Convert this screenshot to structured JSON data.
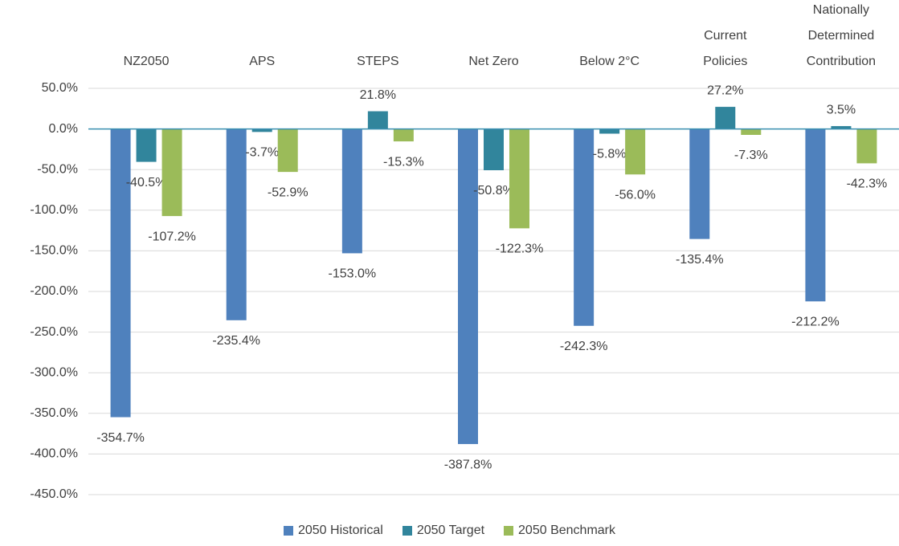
{
  "chart_data": {
    "type": "bar",
    "categories": [
      "NZ2050",
      "APS",
      "STEPS",
      "Net Zero",
      "Below 2°C",
      "Current Policies",
      "Nationally Determined Contribution"
    ],
    "series": [
      {
        "name": "2050 Historical",
        "color": "#4f81bd",
        "values": [
          -354.7,
          -235.4,
          -153.0,
          -387.8,
          -242.3,
          -135.4,
          -212.2
        ],
        "value_labels": [
          "-354.7%",
          "-235.4%",
          "-153.0%",
          "-387.8%",
          "-242.3%",
          "-135.4%",
          "-212.2%"
        ]
      },
      {
        "name": "2050 Target",
        "color": "#31859c",
        "values": [
          -40.5,
          -3.7,
          21.8,
          -50.8,
          -5.8,
          27.2,
          3.5
        ],
        "value_labels": [
          "-40.5%",
          "-3.7%",
          "21.8%",
          "-50.8%",
          "-5.8%",
          "27.2%",
          "3.5%"
        ]
      },
      {
        "name": "2050 Benchmark",
        "color": "#9bbb59",
        "values": [
          -107.2,
          -52.9,
          -15.3,
          -122.3,
          -56.0,
          -7.3,
          -42.3
        ],
        "value_labels": [
          "-107.2%",
          "-52.9%",
          "-15.3%",
          "-122.3%",
          "-56.0%",
          "-7.3%",
          "-42.3%"
        ]
      }
    ],
    "ylim": [
      -450,
      50
    ],
    "yticks": [
      {
        "value": 50,
        "label": "50.0%"
      },
      {
        "value": 0,
        "label": "0.0%"
      },
      {
        "value": -50,
        "label": "-50.0%"
      },
      {
        "value": -100,
        "label": "-100.0%"
      },
      {
        "value": -150,
        "label": "-150.0%"
      },
      {
        "value": -200,
        "label": "-200.0%"
      },
      {
        "value": -250,
        "label": "-250.0%"
      },
      {
        "value": -300,
        "label": "-300.0%"
      },
      {
        "value": -350,
        "label": "-350.0%"
      },
      {
        "value": -400,
        "label": "-400.0%"
      },
      {
        "value": -450,
        "label": "-450.0%"
      }
    ],
    "grid": true,
    "legend": "bottom"
  }
}
